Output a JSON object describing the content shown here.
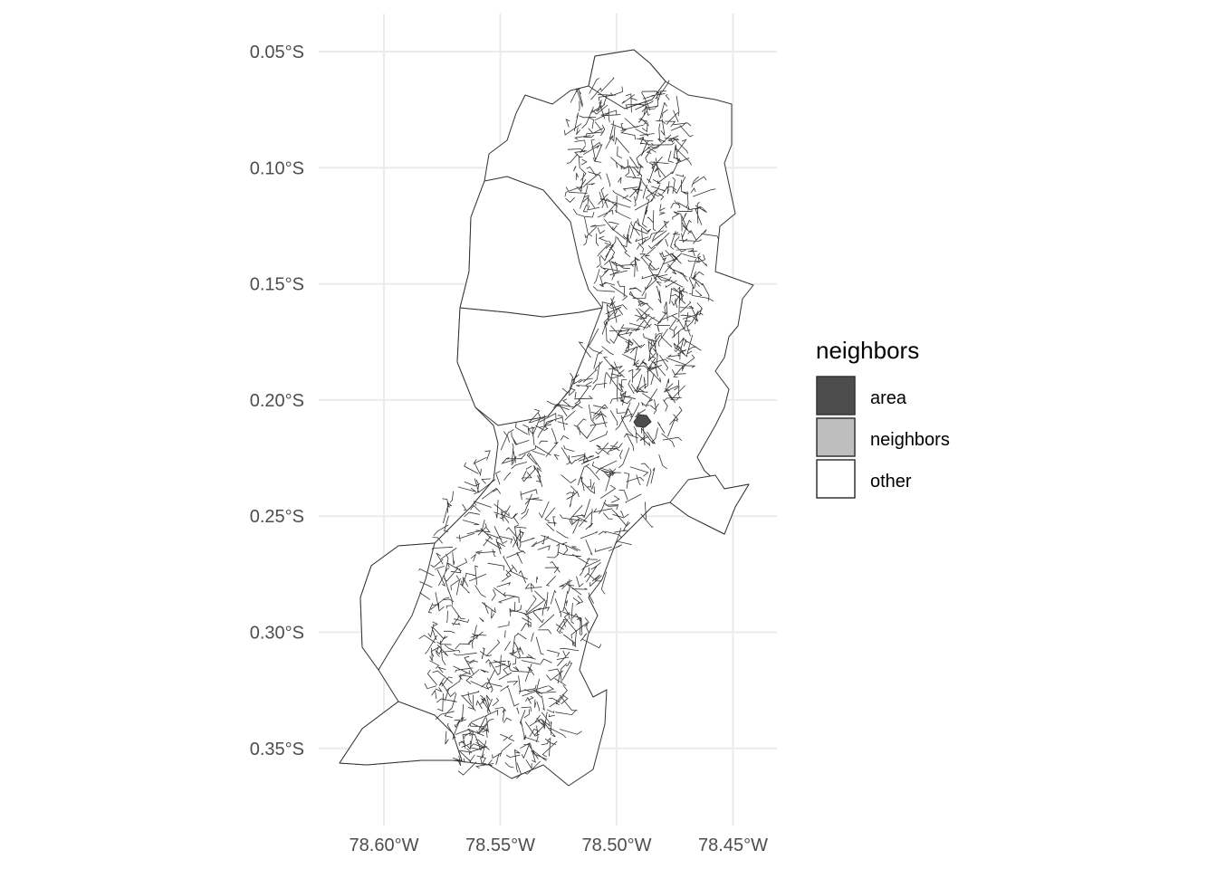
{
  "map": {
    "x_ticks": [
      {
        "value": -78.6,
        "label": "78.60°W"
      },
      {
        "value": -78.55,
        "label": "78.55°W"
      },
      {
        "value": -78.5,
        "label": "78.50°W"
      },
      {
        "value": -78.45,
        "label": "78.45°W"
      }
    ],
    "y_ticks": [
      {
        "value": -0.05,
        "label": "0.05°S"
      },
      {
        "value": -0.1,
        "label": "0.10°S"
      },
      {
        "value": -0.15,
        "label": "0.15°S"
      },
      {
        "value": -0.2,
        "label": "0.20°S"
      },
      {
        "value": -0.25,
        "label": "0.25°S"
      },
      {
        "value": -0.3,
        "label": "0.30°S"
      },
      {
        "value": -0.35,
        "label": "0.35°S"
      }
    ],
    "highlighted_area": {
      "lon": -78.49,
      "lat": -0.209,
      "class": "area"
    },
    "grid": true,
    "legend_position": "right"
  },
  "legend": {
    "title": "neighbors",
    "items": [
      {
        "label": "area",
        "color": "#4d4d4d"
      },
      {
        "label": "neighbors",
        "color": "#bebebe"
      },
      {
        "label": "other",
        "color": "#ffffff"
      }
    ]
  }
}
